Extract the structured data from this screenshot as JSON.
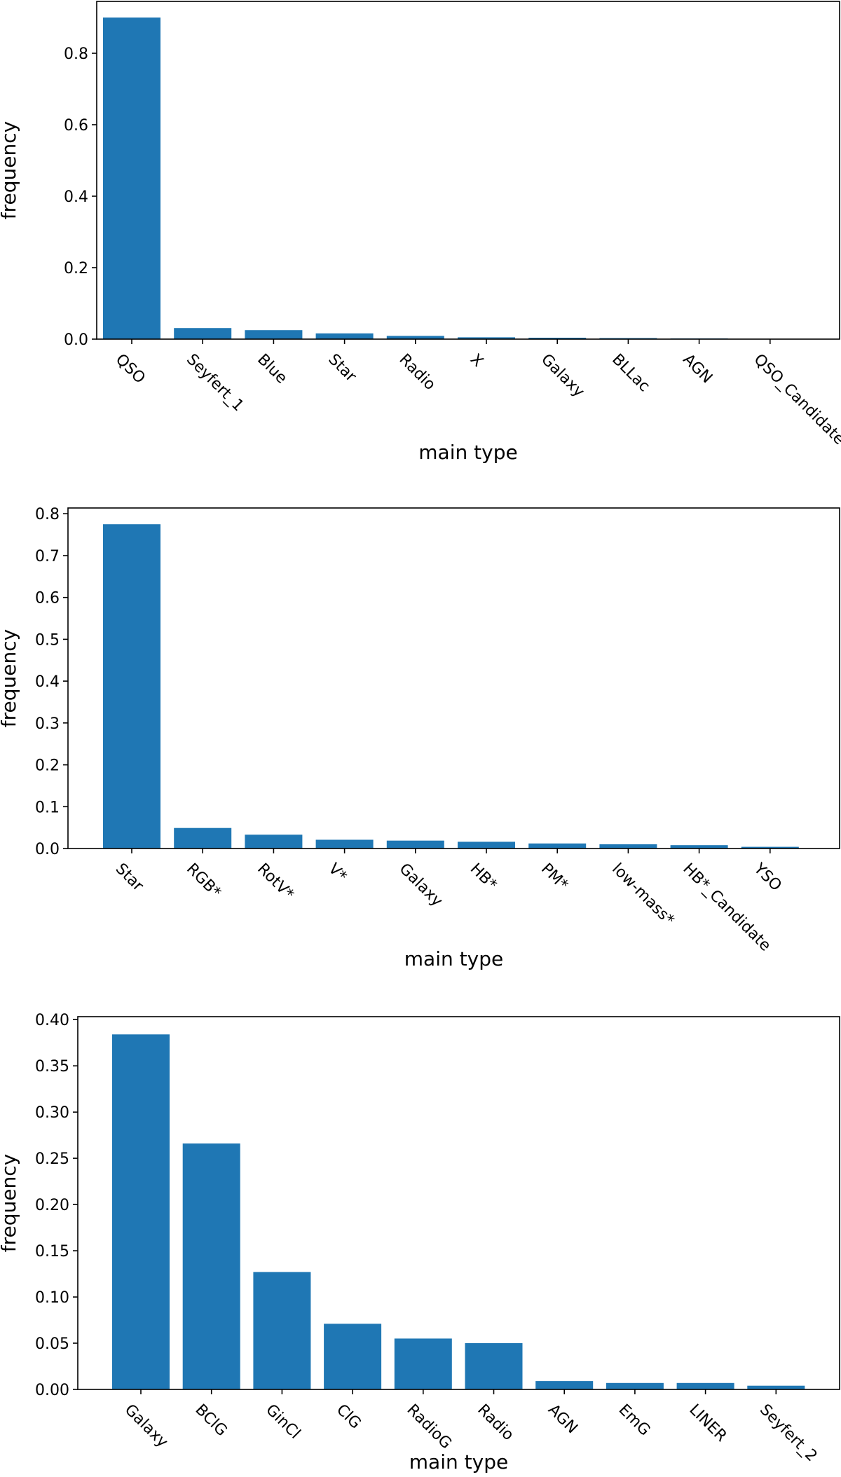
{
  "style": {
    "bar_color": "#1f77b4",
    "axis_color": "#000000",
    "background": "#ffffff"
  },
  "chart_data": [
    {
      "type": "bar",
      "categories": [
        "QSO",
        "Seyfert_1",
        "Blue",
        "Star",
        "Radio",
        "X",
        "Galaxy",
        "BLLac",
        "AGN",
        "QSO_Candidate"
      ],
      "values": [
        0.9,
        0.031,
        0.025,
        0.016,
        0.009,
        0.005,
        0.004,
        0.003,
        0.002,
        0.001
      ],
      "yticks": [
        0.0,
        0.2,
        0.4,
        0.6,
        0.8
      ],
      "ytick_labels": [
        "0.0",
        "0.2",
        "0.4",
        "0.6",
        "0.8"
      ],
      "ylim": [
        0,
        0.945
      ],
      "xlabel": "main type",
      "ylabel": "frequency",
      "grid": false
    },
    {
      "type": "bar",
      "categories": [
        "Star",
        "RGB*",
        "RotV*",
        "V*",
        "Galaxy",
        "HB*",
        "PM*",
        "low-mass*",
        "HB*_Candidate",
        "YSO"
      ],
      "values": [
        0.775,
        0.049,
        0.033,
        0.021,
        0.019,
        0.016,
        0.012,
        0.01,
        0.008,
        0.004
      ],
      "yticks": [
        0.0,
        0.1,
        0.2,
        0.3,
        0.4,
        0.5,
        0.6,
        0.7,
        0.8
      ],
      "ytick_labels": [
        "0.0",
        "0.1",
        "0.2",
        "0.3",
        "0.4",
        "0.5",
        "0.6",
        "0.7",
        "0.8"
      ],
      "ylim": [
        0,
        0.8138
      ],
      "xlabel": "main type",
      "ylabel": "frequency",
      "grid": false
    },
    {
      "type": "bar",
      "categories": [
        "Galaxy",
        "BClG",
        "GinCl",
        "ClG",
        "RadioG",
        "Radio",
        "AGN",
        "EmG",
        "LINER",
        "Seyfert_2"
      ],
      "values": [
        0.384,
        0.266,
        0.127,
        0.071,
        0.055,
        0.05,
        0.009,
        0.007,
        0.007,
        0.004
      ],
      "yticks": [
        0.0,
        0.05,
        0.1,
        0.15,
        0.2,
        0.25,
        0.3,
        0.35,
        0.4
      ],
      "ytick_labels": [
        "0.00",
        "0.05",
        "0.10",
        "0.15",
        "0.20",
        "0.25",
        "0.30",
        "0.35",
        "0.40"
      ],
      "ylim": [
        0,
        0.4032
      ],
      "xlabel": "main type",
      "ylabel": "frequency",
      "grid": false
    }
  ]
}
